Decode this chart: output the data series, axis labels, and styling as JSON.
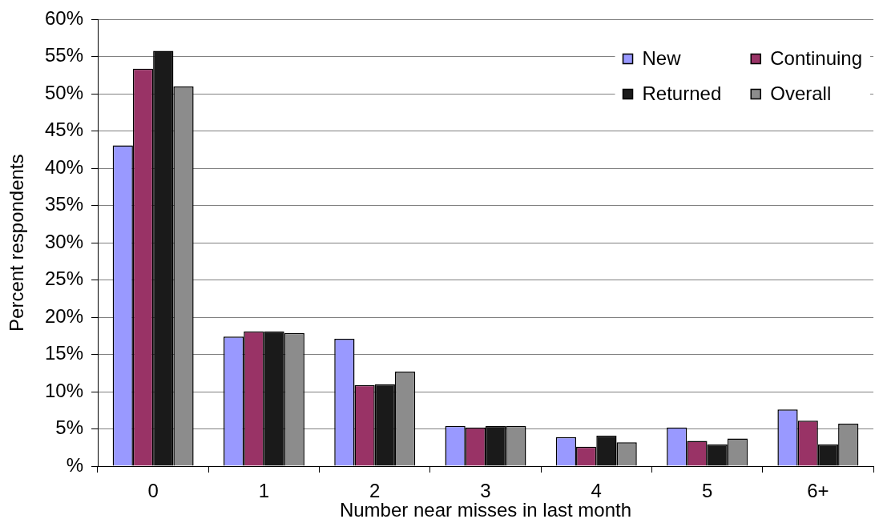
{
  "chart_data": {
    "type": "bar",
    "xlabel": "Number near misses in last month",
    "ylabel": "Percent respondents",
    "categories": [
      "0",
      "1",
      "2",
      "3",
      "4",
      "5",
      "6+"
    ],
    "series": [
      {
        "name": "New",
        "color": "#9999ff",
        "values": [
          43.1,
          17.4,
          17.1,
          5.4,
          3.9,
          5.2,
          7.6
        ]
      },
      {
        "name": "Continuing",
        "color": "#993366",
        "values": [
          53.4,
          18.1,
          10.9,
          5.2,
          2.6,
          3.4,
          6.1
        ]
      },
      {
        "name": "Returned",
        "color": "#1a1a1a",
        "values": [
          55.8,
          18.1,
          11.0,
          5.4,
          4.1,
          2.9,
          2.9
        ]
      },
      {
        "name": "Overall",
        "color": "#8c8c8c",
        "values": [
          51.0,
          17.9,
          12.7,
          5.4,
          3.2,
          3.7,
          5.7
        ]
      }
    ],
    "ylim": [
      0,
      60
    ],
    "yticks": [
      {
        "value": 0,
        "label": "%"
      },
      {
        "value": 5,
        "label": "5%"
      },
      {
        "value": 10,
        "label": "10%"
      },
      {
        "value": 15,
        "label": "15%"
      },
      {
        "value": 20,
        "label": "20%"
      },
      {
        "value": 25,
        "label": "25%"
      },
      {
        "value": 30,
        "label": "30%"
      },
      {
        "value": 35,
        "label": "35%"
      },
      {
        "value": 40,
        "label": "40%"
      },
      {
        "value": 45,
        "label": "45%"
      },
      {
        "value": 50,
        "label": "50%"
      },
      {
        "value": 55,
        "label": "55%"
      },
      {
        "value": 60,
        "label": "60%"
      }
    ],
    "grid": "y",
    "legend": "top right"
  }
}
